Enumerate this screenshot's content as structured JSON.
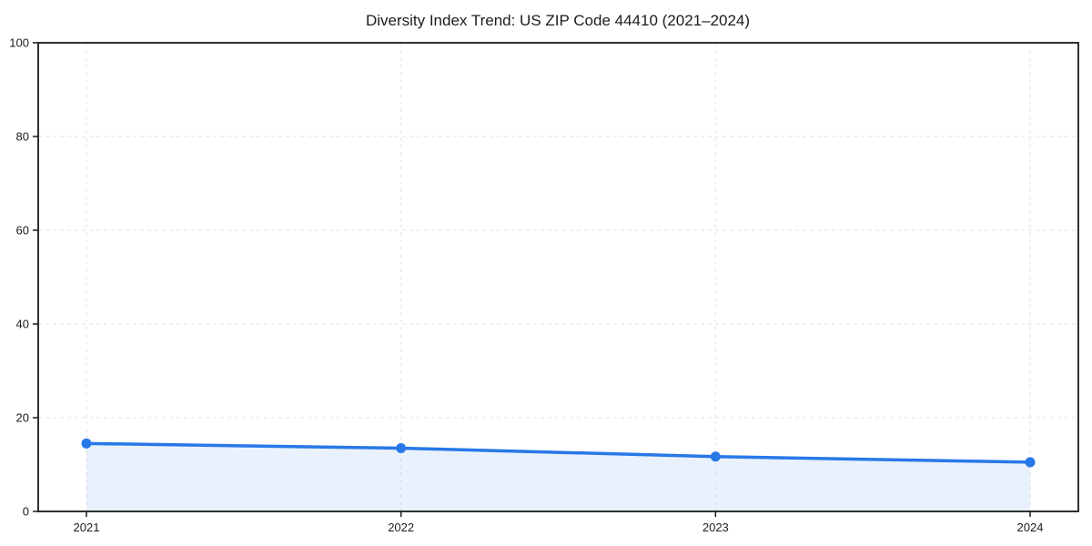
{
  "chart_data": {
    "type": "line",
    "title": "Diversity Index Trend: US ZIP Code 44410 (2021–2024)",
    "x": [
      "2021",
      "2022",
      "2023",
      "2024"
    ],
    "series": [
      {
        "name": "Diversity Index",
        "values": [
          14.5,
          13.5,
          11.7,
          10.5
        ]
      }
    ],
    "xlabel": "",
    "ylabel": "",
    "ylim": [
      0,
      100
    ],
    "yticks": [
      0,
      20,
      40,
      60,
      80,
      100
    ],
    "grid": "dashed-both-axes",
    "legend": "none",
    "area_fill": true,
    "marker": "circle",
    "colors": {
      "line": "#2878e8",
      "marker": "#2878e8",
      "area": "#2878e8",
      "area_opacity": 0.1,
      "grid": "#e3e3e3",
      "spine": "#1a1a1a",
      "text": "#1c1c1c",
      "background": "#ffffff"
    }
  }
}
